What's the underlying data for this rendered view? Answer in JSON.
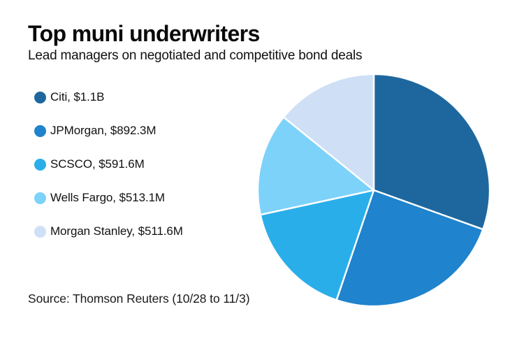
{
  "page": {
    "background": "#ffffff"
  },
  "header": {
    "title": "Top muni underwriters",
    "subtitle": "Lead managers on negotiated and competitive bond deals"
  },
  "source": {
    "text": "Source: Thomson Reuters (10/28 to 11/3)"
  },
  "chart_data": {
    "type": "pie",
    "title": "Top muni underwriters",
    "subtitle": "Lead managers on negotiated and competitive bond deals",
    "unit": "USD millions",
    "start_angle_deg": 0,
    "direction": "clockwise",
    "legend_position": "left",
    "separator_color": "#ffffff",
    "slices": [
      {
        "label": "Citi",
        "value_label": "$1.1B",
        "value_musd": 1100.0,
        "display": "Citi, $1.1B",
        "color": "#1e679e"
      },
      {
        "label": "JPMorgan",
        "value_label": "$892.3M",
        "value_musd": 892.3,
        "display": "JPMorgan, $892.3M",
        "color": "#1f83cd"
      },
      {
        "label": "SCSCO",
        "value_label": "$591.6M",
        "value_musd": 591.6,
        "display": "SCSCO, $591.6M",
        "color": "#29aeea"
      },
      {
        "label": "Wells Fargo",
        "value_label": "$513.1M",
        "value_musd": 513.1,
        "display": "Wells Fargo, $513.1M",
        "color": "#7dd2fa"
      },
      {
        "label": "Morgan Stanley",
        "value_label": "$511.6M",
        "value_musd": 511.6,
        "display": "Morgan Stanley, $511.6M",
        "color": "#cfdff6"
      }
    ]
  }
}
